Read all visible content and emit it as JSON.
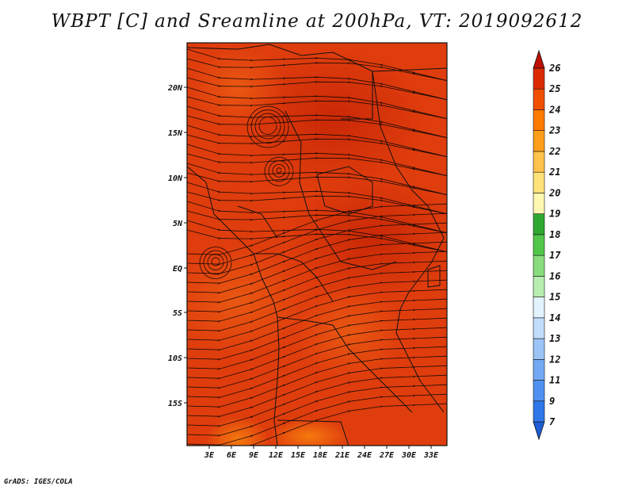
{
  "title": "WBPT [C] and Sreamline at 200hPa, VT: 2019092612",
  "footer": "GrADS: IGES/COLA",
  "map": {
    "lat_ticks": [
      "20N",
      "15N",
      "10N",
      "5N",
      "EQ",
      "5S",
      "10S",
      "15S"
    ],
    "lon_ticks": [
      "3E",
      "6E",
      "9E",
      "12E",
      "15E",
      "18E",
      "21E",
      "24E",
      "27E",
      "30E",
      "33E"
    ]
  },
  "colorbar": {
    "labels": [
      "7",
      "9",
      "11",
      "12",
      "13",
      "14",
      "15",
      "16",
      "17",
      "18",
      "19",
      "20",
      "21",
      "22",
      "23",
      "24",
      "25",
      "26"
    ],
    "colors": [
      "#1f5fd6",
      "#2f77e8",
      "#4f91f0",
      "#74a9f4",
      "#9cc4f7",
      "#c2ddfa",
      "#e3f3ff",
      "#b7eeb0",
      "#88dc7e",
      "#52c64a",
      "#2fa832",
      "#fff8b0",
      "#ffe37a",
      "#ffc24a",
      "#ff9e1a",
      "#ff7a00",
      "#f24e00",
      "#dc2a00",
      "#bf0f00"
    ]
  },
  "colors": {
    "field_base": "#df3d0d",
    "field_dark": "#c72606",
    "field_light": "#ea5a12",
    "field_orange": "#f57a0e",
    "streamline": "#1a0a04",
    "coast": "#111111"
  }
}
